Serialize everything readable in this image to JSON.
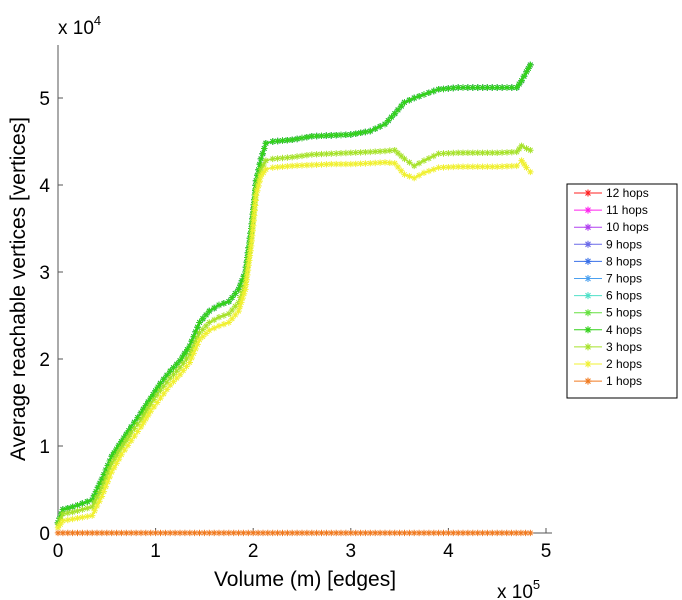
{
  "chart_data": {
    "type": "line",
    "xlabel": "Volume (m) [edges]",
    "ylabel": "Average reachable vertices [vertices]",
    "x_multiplier_label": "x 10",
    "x_multiplier_exp": "5",
    "y_multiplier_label": "x 10",
    "y_multiplier_exp": "4",
    "xlim": [
      0,
      5.1
    ],
    "ylim": [
      0,
      5.5
    ],
    "xticks": [
      0,
      1,
      2,
      3,
      4,
      5
    ],
    "yticks": [
      0,
      1,
      2,
      3,
      4,
      5
    ],
    "xtick_labels": [
      "0",
      "1",
      "2",
      "3",
      "4",
      "5"
    ],
    "ytick_labels": [
      "0",
      "1",
      "2",
      "3",
      "4",
      "5"
    ],
    "legend_position": "right",
    "series": [
      {
        "name": "12 hops",
        "color": "#ff2020",
        "marker": "*",
        "shape": "high",
        "x": [
          0,
          0.05,
          0.15,
          0.25,
          0.35,
          0.45,
          0.55,
          0.65,
          0.75,
          0.85,
          0.95,
          1.05,
          1.15,
          1.25,
          1.35,
          1.45,
          1.55,
          1.65,
          1.75,
          1.85,
          1.92,
          1.98,
          2.03,
          2.08,
          2.13,
          2.2,
          2.4,
          2.6,
          2.8,
          3.0,
          3.2,
          3.35,
          3.45,
          3.55,
          3.65,
          3.75,
          3.9,
          4.1,
          4.3,
          4.5,
          4.7,
          4.75,
          4.8,
          4.84
        ],
        "values": [
          0.12,
          0.27,
          0.3,
          0.34,
          0.38,
          0.62,
          0.88,
          1.05,
          1.22,
          1.38,
          1.55,
          1.72,
          1.86,
          1.98,
          2.15,
          2.42,
          2.55,
          2.62,
          2.66,
          2.8,
          3.0,
          3.5,
          4.05,
          4.3,
          4.48,
          4.5,
          4.52,
          4.56,
          4.57,
          4.58,
          4.62,
          4.7,
          4.82,
          4.95,
          5.0,
          5.04,
          5.1,
          5.12,
          5.12,
          5.12,
          5.12,
          5.2,
          5.3,
          5.38
        ]
      },
      {
        "name": "11 hops",
        "color": "#ff22ee",
        "marker": "*",
        "shape": "high",
        "x": [
          0,
          0.05,
          0.15,
          0.25,
          0.35,
          0.45,
          0.55,
          0.65,
          0.75,
          0.85,
          0.95,
          1.05,
          1.15,
          1.25,
          1.35,
          1.45,
          1.55,
          1.65,
          1.75,
          1.85,
          1.92,
          1.98,
          2.03,
          2.08,
          2.13,
          2.2,
          2.4,
          2.6,
          2.8,
          3.0,
          3.2,
          3.35,
          3.45,
          3.55,
          3.65,
          3.75,
          3.9,
          4.1,
          4.3,
          4.5,
          4.7,
          4.75,
          4.8,
          4.84
        ],
        "values": [
          0.12,
          0.27,
          0.3,
          0.34,
          0.38,
          0.62,
          0.88,
          1.05,
          1.22,
          1.38,
          1.55,
          1.72,
          1.86,
          1.98,
          2.15,
          2.42,
          2.55,
          2.62,
          2.66,
          2.8,
          3.0,
          3.5,
          4.05,
          4.3,
          4.48,
          4.5,
          4.52,
          4.56,
          4.57,
          4.58,
          4.62,
          4.7,
          4.82,
          4.95,
          5.0,
          5.04,
          5.1,
          5.12,
          5.12,
          5.12,
          5.12,
          5.2,
          5.3,
          5.38
        ]
      },
      {
        "name": "10 hops",
        "color": "#b040f0",
        "marker": "*",
        "shape": "high",
        "x": [
          0,
          0.05,
          0.15,
          0.25,
          0.35,
          0.45,
          0.55,
          0.65,
          0.75,
          0.85,
          0.95,
          1.05,
          1.15,
          1.25,
          1.35,
          1.45,
          1.55,
          1.65,
          1.75,
          1.85,
          1.92,
          1.98,
          2.03,
          2.08,
          2.13,
          2.2,
          2.4,
          2.6,
          2.8,
          3.0,
          3.2,
          3.35,
          3.45,
          3.55,
          3.65,
          3.75,
          3.9,
          4.1,
          4.3,
          4.5,
          4.7,
          4.75,
          4.8,
          4.84
        ],
        "values": [
          0.12,
          0.27,
          0.3,
          0.34,
          0.38,
          0.62,
          0.88,
          1.05,
          1.22,
          1.38,
          1.55,
          1.72,
          1.86,
          1.98,
          2.15,
          2.42,
          2.55,
          2.62,
          2.66,
          2.8,
          3.0,
          3.5,
          4.05,
          4.3,
          4.48,
          4.5,
          4.52,
          4.56,
          4.57,
          4.58,
          4.62,
          4.7,
          4.82,
          4.95,
          5.0,
          5.04,
          5.1,
          5.12,
          5.12,
          5.12,
          5.12,
          5.2,
          5.3,
          5.38
        ]
      },
      {
        "name": "9 hops",
        "color": "#6a6ae8",
        "marker": "*",
        "shape": "high",
        "x": [
          0,
          0.05,
          0.15,
          0.25,
          0.35,
          0.45,
          0.55,
          0.65,
          0.75,
          0.85,
          0.95,
          1.05,
          1.15,
          1.25,
          1.35,
          1.45,
          1.55,
          1.65,
          1.75,
          1.85,
          1.92,
          1.98,
          2.03,
          2.08,
          2.13,
          2.2,
          2.4,
          2.6,
          2.8,
          3.0,
          3.2,
          3.35,
          3.45,
          3.55,
          3.65,
          3.75,
          3.9,
          4.1,
          4.3,
          4.5,
          4.7,
          4.75,
          4.8,
          4.84
        ],
        "values": [
          0.12,
          0.27,
          0.3,
          0.34,
          0.38,
          0.62,
          0.88,
          1.05,
          1.22,
          1.38,
          1.55,
          1.72,
          1.86,
          1.98,
          2.15,
          2.42,
          2.55,
          2.62,
          2.66,
          2.8,
          3.0,
          3.5,
          4.05,
          4.3,
          4.48,
          4.5,
          4.52,
          4.56,
          4.57,
          4.58,
          4.62,
          4.7,
          4.82,
          4.95,
          5.0,
          5.04,
          5.1,
          5.12,
          5.12,
          5.12,
          5.12,
          5.2,
          5.3,
          5.38
        ]
      },
      {
        "name": "8 hops",
        "color": "#3a70e8",
        "marker": "*",
        "shape": "high",
        "x": [
          0,
          0.05,
          0.15,
          0.25,
          0.35,
          0.45,
          0.55,
          0.65,
          0.75,
          0.85,
          0.95,
          1.05,
          1.15,
          1.25,
          1.35,
          1.45,
          1.55,
          1.65,
          1.75,
          1.85,
          1.92,
          1.98,
          2.03,
          2.08,
          2.13,
          2.2,
          2.4,
          2.6,
          2.8,
          3.0,
          3.2,
          3.35,
          3.45,
          3.55,
          3.65,
          3.75,
          3.9,
          4.1,
          4.3,
          4.5,
          4.7,
          4.75,
          4.8,
          4.84
        ],
        "values": [
          0.12,
          0.27,
          0.3,
          0.34,
          0.38,
          0.62,
          0.88,
          1.05,
          1.22,
          1.38,
          1.55,
          1.72,
          1.86,
          1.98,
          2.15,
          2.42,
          2.55,
          2.62,
          2.66,
          2.8,
          3.0,
          3.5,
          4.05,
          4.3,
          4.48,
          4.5,
          4.52,
          4.56,
          4.57,
          4.58,
          4.62,
          4.7,
          4.82,
          4.95,
          5.0,
          5.04,
          5.1,
          5.12,
          5.12,
          5.12,
          5.12,
          5.2,
          5.3,
          5.38
        ]
      },
      {
        "name": "7 hops",
        "color": "#4aa0f0",
        "marker": "*",
        "shape": "high",
        "x": [
          0,
          0.05,
          0.15,
          0.25,
          0.35,
          0.45,
          0.55,
          0.65,
          0.75,
          0.85,
          0.95,
          1.05,
          1.15,
          1.25,
          1.35,
          1.45,
          1.55,
          1.65,
          1.75,
          1.85,
          1.92,
          1.98,
          2.03,
          2.08,
          2.13,
          2.2,
          2.4,
          2.6,
          2.8,
          3.0,
          3.2,
          3.35,
          3.45,
          3.55,
          3.65,
          3.75,
          3.9,
          4.1,
          4.3,
          4.5,
          4.7,
          4.75,
          4.8,
          4.84
        ],
        "values": [
          0.12,
          0.27,
          0.3,
          0.34,
          0.38,
          0.62,
          0.88,
          1.05,
          1.22,
          1.38,
          1.55,
          1.72,
          1.86,
          1.98,
          2.15,
          2.42,
          2.55,
          2.62,
          2.66,
          2.8,
          3.0,
          3.5,
          4.05,
          4.3,
          4.48,
          4.5,
          4.52,
          4.56,
          4.57,
          4.58,
          4.62,
          4.7,
          4.82,
          4.95,
          5.0,
          5.04,
          5.1,
          5.12,
          5.12,
          5.12,
          5.12,
          5.2,
          5.3,
          5.38
        ]
      },
      {
        "name": "6 hops",
        "color": "#50e0c8",
        "marker": "*",
        "shape": "high",
        "x": [
          0,
          0.05,
          0.15,
          0.25,
          0.35,
          0.45,
          0.55,
          0.65,
          0.75,
          0.85,
          0.95,
          1.05,
          1.15,
          1.25,
          1.35,
          1.45,
          1.55,
          1.65,
          1.75,
          1.85,
          1.92,
          1.98,
          2.03,
          2.08,
          2.13,
          2.2,
          2.4,
          2.6,
          2.8,
          3.0,
          3.2,
          3.35,
          3.45,
          3.55,
          3.65,
          3.75,
          3.9,
          4.1,
          4.3,
          4.5,
          4.7,
          4.75,
          4.8,
          4.84
        ],
        "values": [
          0.12,
          0.27,
          0.3,
          0.34,
          0.38,
          0.62,
          0.88,
          1.05,
          1.22,
          1.38,
          1.55,
          1.72,
          1.86,
          1.98,
          2.15,
          2.42,
          2.55,
          2.62,
          2.66,
          2.8,
          3.0,
          3.5,
          4.05,
          4.3,
          4.48,
          4.5,
          4.52,
          4.56,
          4.57,
          4.58,
          4.62,
          4.7,
          4.82,
          4.95,
          5.0,
          5.04,
          5.1,
          5.12,
          5.12,
          5.12,
          5.12,
          5.2,
          5.3,
          5.38
        ]
      },
      {
        "name": "5 hops",
        "color": "#66e040",
        "marker": "*",
        "shape": "high",
        "x": [
          0,
          0.05,
          0.15,
          0.25,
          0.35,
          0.45,
          0.55,
          0.65,
          0.75,
          0.85,
          0.95,
          1.05,
          1.15,
          1.25,
          1.35,
          1.45,
          1.55,
          1.65,
          1.75,
          1.85,
          1.92,
          1.98,
          2.03,
          2.08,
          2.13,
          2.2,
          2.4,
          2.6,
          2.8,
          3.0,
          3.2,
          3.35,
          3.45,
          3.55,
          3.65,
          3.75,
          3.9,
          4.1,
          4.3,
          4.5,
          4.7,
          4.75,
          4.8,
          4.84
        ],
        "values": [
          0.12,
          0.27,
          0.3,
          0.34,
          0.38,
          0.62,
          0.88,
          1.05,
          1.22,
          1.38,
          1.55,
          1.72,
          1.86,
          1.98,
          2.15,
          2.42,
          2.55,
          2.62,
          2.66,
          2.8,
          3.0,
          3.5,
          4.05,
          4.3,
          4.48,
          4.5,
          4.52,
          4.56,
          4.57,
          4.58,
          4.62,
          4.7,
          4.82,
          4.95,
          5.0,
          5.04,
          5.1,
          5.12,
          5.12,
          5.12,
          5.12,
          5.2,
          5.3,
          5.38
        ]
      },
      {
        "name": "4 hops",
        "color": "#33d11a",
        "marker": "*",
        "shape": "high",
        "x": [
          0,
          0.05,
          0.15,
          0.25,
          0.35,
          0.45,
          0.55,
          0.65,
          0.75,
          0.85,
          0.95,
          1.05,
          1.15,
          1.25,
          1.35,
          1.45,
          1.55,
          1.65,
          1.75,
          1.85,
          1.92,
          1.98,
          2.03,
          2.08,
          2.13,
          2.2,
          2.4,
          2.6,
          2.8,
          3.0,
          3.2,
          3.35,
          3.45,
          3.55,
          3.65,
          3.75,
          3.9,
          4.1,
          4.3,
          4.5,
          4.7,
          4.75,
          4.8,
          4.84
        ],
        "values": [
          0.12,
          0.27,
          0.3,
          0.34,
          0.38,
          0.62,
          0.88,
          1.05,
          1.22,
          1.38,
          1.55,
          1.72,
          1.86,
          1.98,
          2.15,
          2.42,
          2.55,
          2.62,
          2.66,
          2.8,
          3.0,
          3.5,
          4.05,
          4.3,
          4.48,
          4.5,
          4.52,
          4.56,
          4.57,
          4.58,
          4.62,
          4.7,
          4.82,
          4.95,
          5.0,
          5.04,
          5.1,
          5.12,
          5.12,
          5.12,
          5.12,
          5.2,
          5.3,
          5.38
        ]
      },
      {
        "name": "3 hops",
        "color": "#a6e22a",
        "marker": "*",
        "shape": "mid",
        "x": [
          0,
          0.05,
          0.15,
          0.25,
          0.35,
          0.45,
          0.55,
          0.65,
          0.75,
          0.85,
          0.95,
          1.05,
          1.15,
          1.25,
          1.35,
          1.45,
          1.55,
          1.65,
          1.75,
          1.85,
          1.92,
          1.98,
          2.03,
          2.08,
          2.13,
          2.2,
          2.4,
          2.6,
          2.8,
          3.0,
          3.2,
          3.35,
          3.45,
          3.55,
          3.65,
          3.75,
          3.9,
          4.1,
          4.3,
          4.5,
          4.7,
          4.75,
          4.8,
          4.84
        ],
        "values": [
          0.1,
          0.22,
          0.24,
          0.27,
          0.3,
          0.52,
          0.8,
          0.98,
          1.15,
          1.3,
          1.48,
          1.64,
          1.78,
          1.9,
          2.05,
          2.3,
          2.42,
          2.48,
          2.52,
          2.65,
          2.88,
          3.38,
          3.95,
          4.18,
          4.28,
          4.3,
          4.32,
          4.35,
          4.36,
          4.37,
          4.38,
          4.39,
          4.4,
          4.3,
          4.22,
          4.28,
          4.36,
          4.37,
          4.37,
          4.37,
          4.38,
          4.45,
          4.42,
          4.4
        ]
      },
      {
        "name": "2 hops",
        "color": "#f0f030",
        "marker": "*",
        "shape": "low",
        "x": [
          0,
          0.05,
          0.15,
          0.25,
          0.35,
          0.45,
          0.55,
          0.65,
          0.75,
          0.85,
          0.95,
          1.05,
          1.15,
          1.25,
          1.35,
          1.45,
          1.55,
          1.65,
          1.75,
          1.85,
          1.92,
          1.98,
          2.03,
          2.08,
          2.13,
          2.2,
          2.4,
          2.6,
          2.8,
          3.0,
          3.2,
          3.35,
          3.45,
          3.55,
          3.65,
          3.75,
          3.9,
          4.1,
          4.3,
          4.5,
          4.7,
          4.75,
          4.8,
          4.84
        ],
        "values": [
          0.06,
          0.14,
          0.16,
          0.18,
          0.2,
          0.42,
          0.7,
          0.9,
          1.06,
          1.22,
          1.4,
          1.55,
          1.7,
          1.82,
          1.96,
          2.22,
          2.33,
          2.38,
          2.42,
          2.55,
          2.8,
          3.3,
          3.88,
          4.1,
          4.18,
          4.2,
          4.22,
          4.23,
          4.24,
          4.24,
          4.25,
          4.26,
          4.25,
          4.12,
          4.08,
          4.14,
          4.2,
          4.21,
          4.21,
          4.21,
          4.22,
          4.28,
          4.2,
          4.15
        ]
      },
      {
        "name": "1 hops",
        "color": "#f07a20",
        "marker": "*",
        "shape": "zero",
        "x": [
          0,
          0.5,
          1.0,
          1.5,
          2.0,
          2.5,
          3.0,
          3.5,
          4.0,
          4.5,
          4.84
        ],
        "values": [
          0.001,
          0.001,
          0.001,
          0.001,
          0.001,
          0.001,
          0.001,
          0.001,
          0.001,
          0.001,
          0.001
        ]
      }
    ]
  }
}
